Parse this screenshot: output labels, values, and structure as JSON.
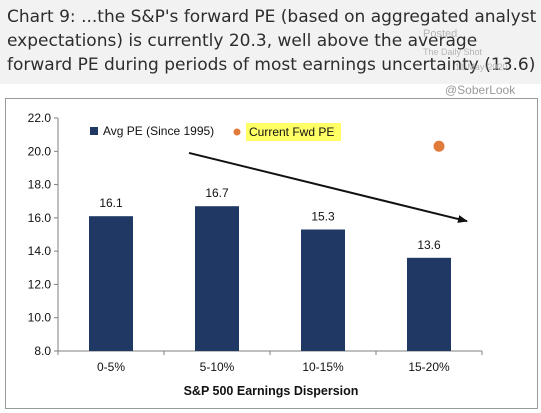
{
  "title": "Chart 9: ...the S&P's forward PE (based on aggregated analyst expectations) is currently 20.3, well above the average forward PE during periods of most earnings uncertainty (13.6)",
  "watermark": {
    "posted": "Posted",
    "source": "The Daily Shot",
    "date": "11-May-2020",
    "handle": "@SoberLook"
  },
  "chart_data": {
    "type": "bar",
    "categories": [
      "0-5%",
      "5-10%",
      "10-15%",
      "15-20%"
    ],
    "series": [
      {
        "name": "Avg PE (Since 1995)",
        "values": [
          16.1,
          16.7,
          15.3,
          13.6
        ],
        "color": "#1f3864"
      }
    ],
    "current": {
      "name": "Current Fwd PE",
      "value": 20.3,
      "category": "15-20%",
      "color": "#e07b39"
    },
    "data_labels": [
      "16.1",
      "16.7",
      "15.3",
      "13.6"
    ],
    "xlabel": "S&P 500 Earnings Dispersion",
    "ylabel": "",
    "ylim": [
      8.0,
      22.0
    ],
    "yticks": [
      8.0,
      10.0,
      12.0,
      14.0,
      16.0,
      18.0,
      20.0,
      22.0
    ],
    "ytick_labels": [
      "8.0",
      "10.0",
      "12.0",
      "14.0",
      "16.0",
      "18.0",
      "20.0",
      "22.0"
    ],
    "legend_position": "top-left",
    "legend_highlight_color": "#ffff66",
    "trend_arrow": {
      "from_category": "5-10%",
      "to_category": "15-20%",
      "from_value": 19.9,
      "to_value": 15.8
    },
    "grid": false
  }
}
